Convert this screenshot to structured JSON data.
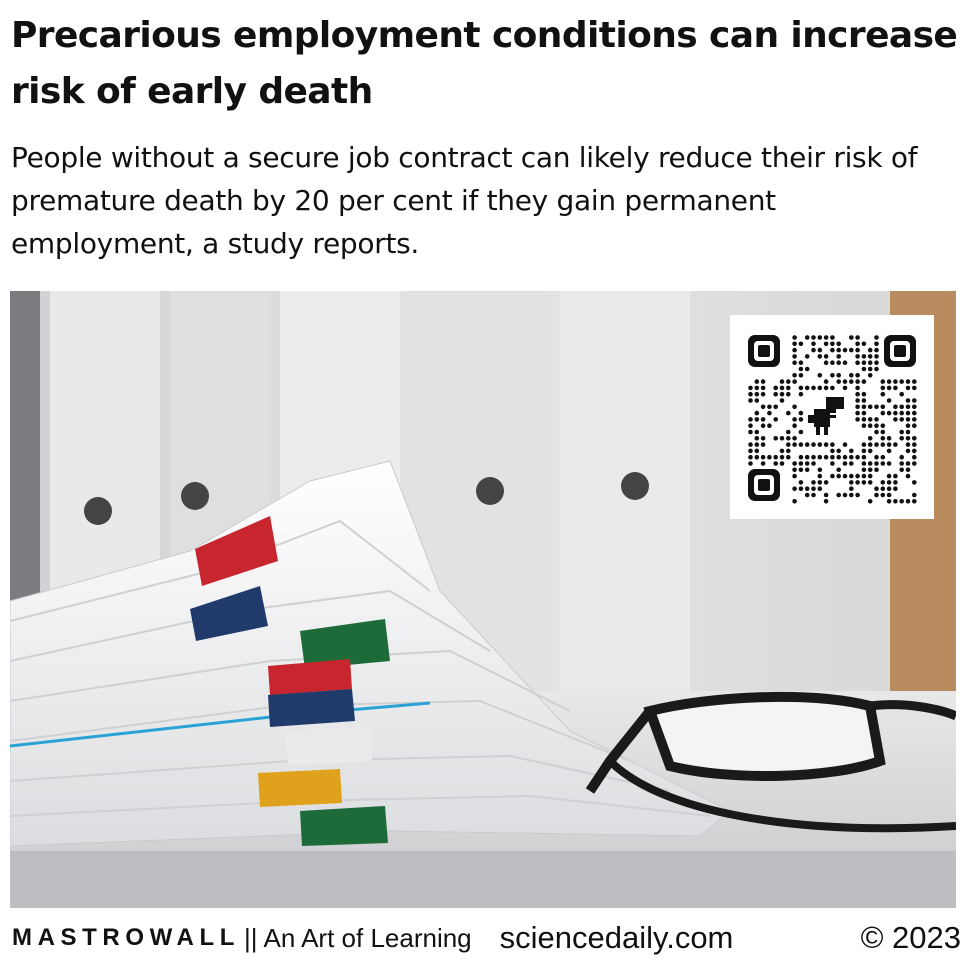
{
  "article": {
    "title": "Precarious employment conditions can increase risk of early death",
    "summary": "People without a secure job contract can likely reduce their risk of premature death by 20 per cent if they gain permanent employment, a study reports."
  },
  "image": {
    "subject": "stack-of-documents-with-binder-clips-and-eyeglasses",
    "qr_icon": "dinosaur-icon"
  },
  "footer": {
    "brand": "MASTROWALL",
    "separator": "||",
    "tagline": "An Art of Learning",
    "source": "sciencedaily.com",
    "copyright": "© 2023"
  },
  "colors": {
    "clip_red": "#c8262e",
    "clip_navy": "#1f3a6b",
    "clip_green": "#1e6b3a",
    "clip_yellow": "#e0a21c",
    "accent_blue_line": "#2aa3d4"
  }
}
